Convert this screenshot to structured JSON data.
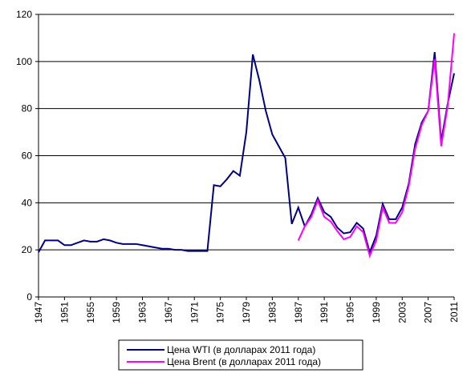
{
  "chart_data": {
    "type": "line",
    "x": [
      1947,
      1948,
      1949,
      1950,
      1951,
      1952,
      1953,
      1954,
      1955,
      1956,
      1957,
      1958,
      1959,
      1960,
      1961,
      1962,
      1963,
      1964,
      1965,
      1966,
      1967,
      1968,
      1969,
      1970,
      1971,
      1972,
      1973,
      1974,
      1975,
      1976,
      1977,
      1978,
      1979,
      1980,
      1981,
      1982,
      1983,
      1984,
      1985,
      1986,
      1987,
      1988,
      1989,
      1990,
      1991,
      1992,
      1993,
      1994,
      1995,
      1996,
      1997,
      1998,
      1999,
      2000,
      2001,
      2002,
      2003,
      2004,
      2005,
      2006,
      2007,
      2008,
      2009,
      2010,
      2011
    ],
    "series": [
      {
        "name": "Цена WTI (в долларах 2011 года)",
        "color": "#000080",
        "values": [
          19,
          24,
          24,
          24,
          22,
          22,
          23,
          24,
          23.5,
          23.5,
          24.5,
          24,
          23,
          22.5,
          22.5,
          22.5,
          22,
          21.5,
          21,
          20.5,
          20.5,
          20,
          20,
          19.5,
          19.5,
          19.5,
          19.5,
          47.5,
          47,
          50,
          53.5,
          51.5,
          70,
          103,
          92,
          79,
          69,
          64,
          59,
          31,
          38,
          30,
          35,
          42,
          36,
          34,
          29.5,
          27,
          27.5,
          31.5,
          29,
          19,
          26,
          39.5,
          33,
          33,
          38,
          48,
          65,
          74,
          79,
          104,
          66,
          82,
          95
        ]
      },
      {
        "name": "Цена Brent (в долларах 2011 года)",
        "color": "#ff00ff",
        "values": [
          null,
          null,
          null,
          null,
          null,
          null,
          null,
          null,
          null,
          null,
          null,
          null,
          null,
          null,
          null,
          null,
          null,
          null,
          null,
          null,
          null,
          null,
          null,
          null,
          null,
          null,
          null,
          null,
          null,
          null,
          null,
          null,
          null,
          null,
          null,
          null,
          null,
          null,
          null,
          null,
          24,
          30,
          34,
          41,
          34,
          32,
          28,
          24.5,
          25.5,
          30,
          27.5,
          17.5,
          24,
          38,
          31.5,
          31.5,
          36,
          47,
          63,
          73,
          79,
          101,
          64,
          81,
          112
        ]
      }
    ],
    "xlim": [
      1947,
      2011
    ],
    "xticks": [
      1947,
      1951,
      1955,
      1959,
      1963,
      1967,
      1971,
      1975,
      1979,
      1983,
      1987,
      1991,
      1995,
      1999,
      2003,
      2007,
      2011
    ],
    "ylim": [
      0,
      120
    ],
    "yticks": [
      0,
      20,
      40,
      60,
      80,
      100,
      120
    ],
    "grid": true
  }
}
